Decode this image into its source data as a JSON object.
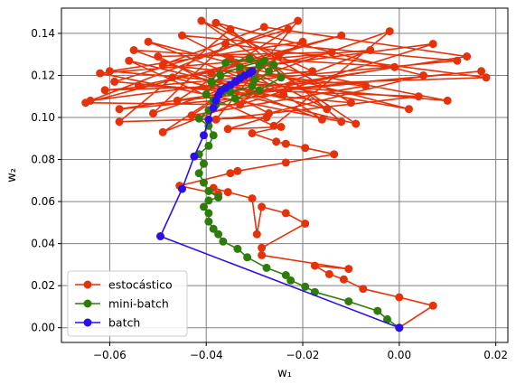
{
  "chart_data": {
    "type": "line",
    "title": "",
    "xlabel": "w₁",
    "ylabel": "w₂",
    "xlim": [
      -0.07,
      0.0225
    ],
    "ylim": [
      -0.007,
      0.152
    ],
    "xticks": [
      -0.06,
      -0.04,
      -0.02,
      0.0,
      0.02
    ],
    "xtick_labels": [
      "−0.06",
      "−0.04",
      "−0.02",
      "0.00",
      "0.02"
    ],
    "yticks": [
      0.0,
      0.02,
      0.04,
      0.06,
      0.08,
      0.1,
      0.12,
      0.14
    ],
    "ytick_labels": [
      "0.00",
      "0.02",
      "0.04",
      "0.06",
      "0.08",
      "0.10",
      "0.12",
      "0.14"
    ],
    "grid": true,
    "legend_position": "lower-left",
    "series": [
      {
        "name": "estocástico",
        "color": "#e6320a",
        "points": [
          [
            0.0,
            0.0
          ],
          [
            0.007,
            0.0105
          ],
          [
            0.0,
            0.0145
          ],
          [
            -0.0075,
            0.0185
          ],
          [
            -0.0115,
            0.023
          ],
          [
            -0.0145,
            0.0255
          ],
          [
            -0.0175,
            0.0295
          ],
          [
            -0.0105,
            0.028
          ],
          [
            -0.0285,
            0.0345
          ],
          [
            -0.0285,
            0.038
          ],
          [
            -0.0195,
            0.0495
          ],
          [
            -0.0235,
            0.0545
          ],
          [
            -0.0285,
            0.0575
          ],
          [
            -0.0295,
            0.0445
          ],
          [
            -0.0305,
            0.0615
          ],
          [
            -0.0355,
            0.0645
          ],
          [
            -0.0385,
            0.0665
          ],
          [
            -0.0375,
            0.0635
          ],
          [
            -0.0455,
            0.0675
          ],
          [
            -0.035,
            0.0735
          ],
          [
            -0.0335,
            0.0745
          ],
          [
            -0.0235,
            0.0785
          ],
          [
            -0.0135,
            0.0825
          ],
          [
            -0.0195,
            0.0855
          ],
          [
            -0.0235,
            0.0875
          ],
          [
            -0.0255,
            0.0885
          ],
          [
            -0.0305,
            0.0925
          ],
          [
            -0.0245,
            0.0955
          ],
          [
            -0.0355,
            0.0945
          ],
          [
            -0.0275,
            0.1
          ],
          [
            -0.058,
            0.098
          ],
          [
            -0.035,
            0.142
          ],
          [
            -0.012,
            0.098
          ],
          [
            -0.062,
            0.121
          ],
          [
            -0.006,
            0.132
          ],
          [
            -0.049,
            0.093
          ],
          [
            -0.025,
            0.129
          ],
          [
            -0.054,
            0.115
          ],
          [
            0.004,
            0.11
          ],
          [
            -0.038,
            0.099
          ],
          [
            -0.021,
            0.146
          ],
          [
            -0.064,
            0.108
          ],
          [
            -0.03,
            0.118
          ],
          [
            0.012,
            0.127
          ],
          [
            -0.045,
            0.139
          ],
          [
            -0.015,
            0.104
          ],
          [
            -0.056,
            0.127
          ],
          [
            -0.026,
            0.096
          ],
          [
            -0.002,
            0.141
          ],
          [
            -0.051,
            0.102
          ],
          [
            -0.036,
            0.135
          ],
          [
            0.018,
            0.119
          ],
          [
            -0.061,
            0.113
          ],
          [
            -0.018,
            0.122
          ],
          [
            -0.041,
            0.146
          ],
          [
            -0.009,
            0.097
          ],
          [
            -0.047,
            0.119
          ],
          [
            0.007,
            0.135
          ],
          [
            -0.033,
            0.106
          ],
          [
            -0.065,
            0.107
          ],
          [
            -0.012,
            0.139
          ],
          [
            -0.039,
            0.121
          ],
          [
            0.002,
            0.104
          ],
          [
            -0.052,
            0.136
          ],
          [
            -0.024,
            0.111
          ],
          [
            -0.058,
            0.104
          ],
          [
            0.014,
            0.129
          ],
          [
            -0.028,
            0.143
          ],
          [
            -0.049,
            0.125
          ],
          [
            -0.007,
            0.115
          ],
          [
            -0.043,
            0.101
          ],
          [
            -0.02,
            0.136
          ],
          [
            -0.06,
            0.122
          ],
          [
            0.01,
            0.108
          ],
          [
            -0.035,
            0.128
          ],
          [
            -0.016,
            0.099
          ],
          [
            -0.055,
            0.132
          ],
          [
            -0.001,
            0.124
          ],
          [
            -0.031,
            0.112
          ],
          [
            0.017,
            0.122
          ],
          [
            -0.046,
            0.108
          ],
          [
            -0.023,
            0.142
          ],
          [
            -0.059,
            0.117
          ],
          [
            -0.01,
            0.107
          ],
          [
            -0.038,
            0.145
          ],
          [
            0.005,
            0.12
          ],
          [
            -0.027,
            0.102
          ],
          [
            -0.05,
            0.129
          ],
          [
            -0.014,
            0.131
          ],
          [
            -0.033,
            0.122
          ]
        ]
      },
      {
        "name": "mini-batch",
        "color": "#2e7d0a",
        "points": [
          [
            0.0,
            0.0
          ],
          [
            -0.0025,
            0.004
          ],
          [
            -0.0045,
            0.008
          ],
          [
            -0.0105,
            0.0125
          ],
          [
            -0.0175,
            0.017
          ],
          [
            -0.0195,
            0.0195
          ],
          [
            -0.0225,
            0.0225
          ],
          [
            -0.0235,
            0.025
          ],
          [
            -0.0275,
            0.0285
          ],
          [
            -0.0315,
            0.0335
          ],
          [
            -0.0335,
            0.0375
          ],
          [
            -0.0365,
            0.041
          ],
          [
            -0.0375,
            0.0445
          ],
          [
            -0.0385,
            0.047
          ],
          [
            -0.0395,
            0.0505
          ],
          [
            -0.0395,
            0.0545
          ],
          [
            -0.0405,
            0.0575
          ],
          [
            -0.0395,
            0.0605
          ],
          [
            -0.0375,
            0.062
          ],
          [
            -0.0395,
            0.065
          ],
          [
            -0.0405,
            0.069
          ],
          [
            -0.0415,
            0.0735
          ],
          [
            -0.0405,
            0.078
          ],
          [
            -0.0415,
            0.0825
          ],
          [
            -0.0395,
            0.0865
          ],
          [
            -0.0385,
            0.0915
          ],
          [
            -0.0395,
            0.096
          ],
          [
            -0.0415,
            0.0995
          ],
          [
            -0.0395,
            0.1035
          ],
          [
            -0.0385,
            0.108
          ],
          [
            -0.0365,
            0.112
          ],
          [
            -0.035,
            0.1155
          ],
          [
            -0.033,
            0.119
          ],
          [
            -0.031,
            0.122
          ],
          [
            -0.029,
            0.125
          ],
          [
            -0.027,
            0.122
          ],
          [
            -0.0305,
            0.115
          ],
          [
            -0.035,
            0.112
          ],
          [
            -0.039,
            0.117
          ],
          [
            -0.036,
            0.126
          ],
          [
            -0.031,
            0.128
          ],
          [
            -0.026,
            0.125
          ],
          [
            -0.0245,
            0.119
          ],
          [
            -0.029,
            0.113
          ],
          [
            -0.034,
            0.109
          ],
          [
            -0.038,
            0.106
          ],
          [
            -0.04,
            0.111
          ],
          [
            -0.037,
            0.12
          ],
          [
            -0.033,
            0.124
          ],
          [
            -0.028,
            0.127
          ],
          [
            -0.03,
            0.118
          ]
        ]
      },
      {
        "name": "batch",
        "color": "#2a0fe8",
        "points": [
          [
            0.0,
            0.0
          ],
          [
            -0.0495,
            0.0435
          ],
          [
            -0.045,
            0.066
          ],
          [
            -0.0425,
            0.0815
          ],
          [
            -0.0405,
            0.0915
          ],
          [
            -0.0395,
            0.099
          ],
          [
            -0.0385,
            0.1045
          ],
          [
            -0.038,
            0.108
          ],
          [
            -0.0375,
            0.1105
          ],
          [
            -0.037,
            0.1125
          ],
          [
            -0.036,
            0.114
          ],
          [
            -0.035,
            0.1155
          ],
          [
            -0.034,
            0.117
          ],
          [
            -0.033,
            0.1185
          ],
          [
            -0.032,
            0.12
          ],
          [
            -0.031,
            0.121
          ],
          [
            -0.0305,
            0.122
          ]
        ]
      }
    ]
  }
}
